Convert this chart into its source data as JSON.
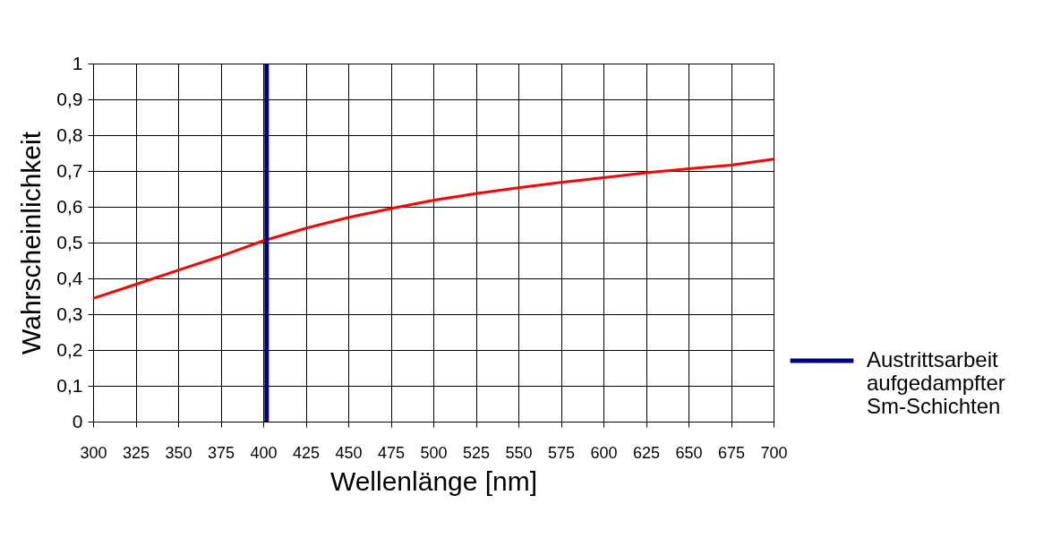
{
  "chart_data": {
    "type": "line",
    "xlabel": "Wellenlänge [nm]",
    "ylabel": "Wahrscheinlichkeit",
    "xlim": [
      300,
      700
    ],
    "xticks": [
      300,
      325,
      350,
      375,
      400,
      425,
      450,
      475,
      500,
      525,
      550,
      575,
      600,
      625,
      650,
      675,
      700
    ],
    "ylim": [
      0,
      1
    ],
    "yticks": [
      0,
      {
        "value": 0.1,
        "label": "0,1"
      },
      {
        "value": 0.2,
        "label": "0,2"
      },
      {
        "value": 0.3,
        "label": "0,3"
      },
      {
        "value": 0.4,
        "label": "0,4"
      },
      {
        "value": 0.5,
        "label": "0,5"
      },
      {
        "value": 0.6,
        "label": "0,6"
      },
      {
        "value": 0.7,
        "label": "0,7"
      },
      {
        "value": 0.8,
        "label": "0,8"
      },
      {
        "value": 0.9,
        "label": "0,9"
      },
      1
    ],
    "grid": true,
    "legend": "bottom right",
    "marker": "none",
    "line_style": "solid",
    "series": [
      {
        "color": "#ff0000",
        "x": [
          300,
          325,
          350,
          375,
          400,
          425,
          450,
          475,
          500,
          525,
          550,
          575,
          600,
          625,
          650,
          675,
          700
        ],
        "values": [
          0.344,
          0.383,
          0.423,
          0.462,
          0.505,
          0.54,
          0.57,
          0.595,
          0.618,
          0.637,
          0.653,
          0.668,
          0.681,
          0.695,
          0.706,
          0.716,
          0.733
        ]
      },
      {
        "name": "Austrittsarbeit aufgedampfter Sm-Schichten",
        "color": "#000080",
        "x": [
          402,
          402
        ],
        "values": [
          0,
          1
        ]
      }
    ]
  }
}
